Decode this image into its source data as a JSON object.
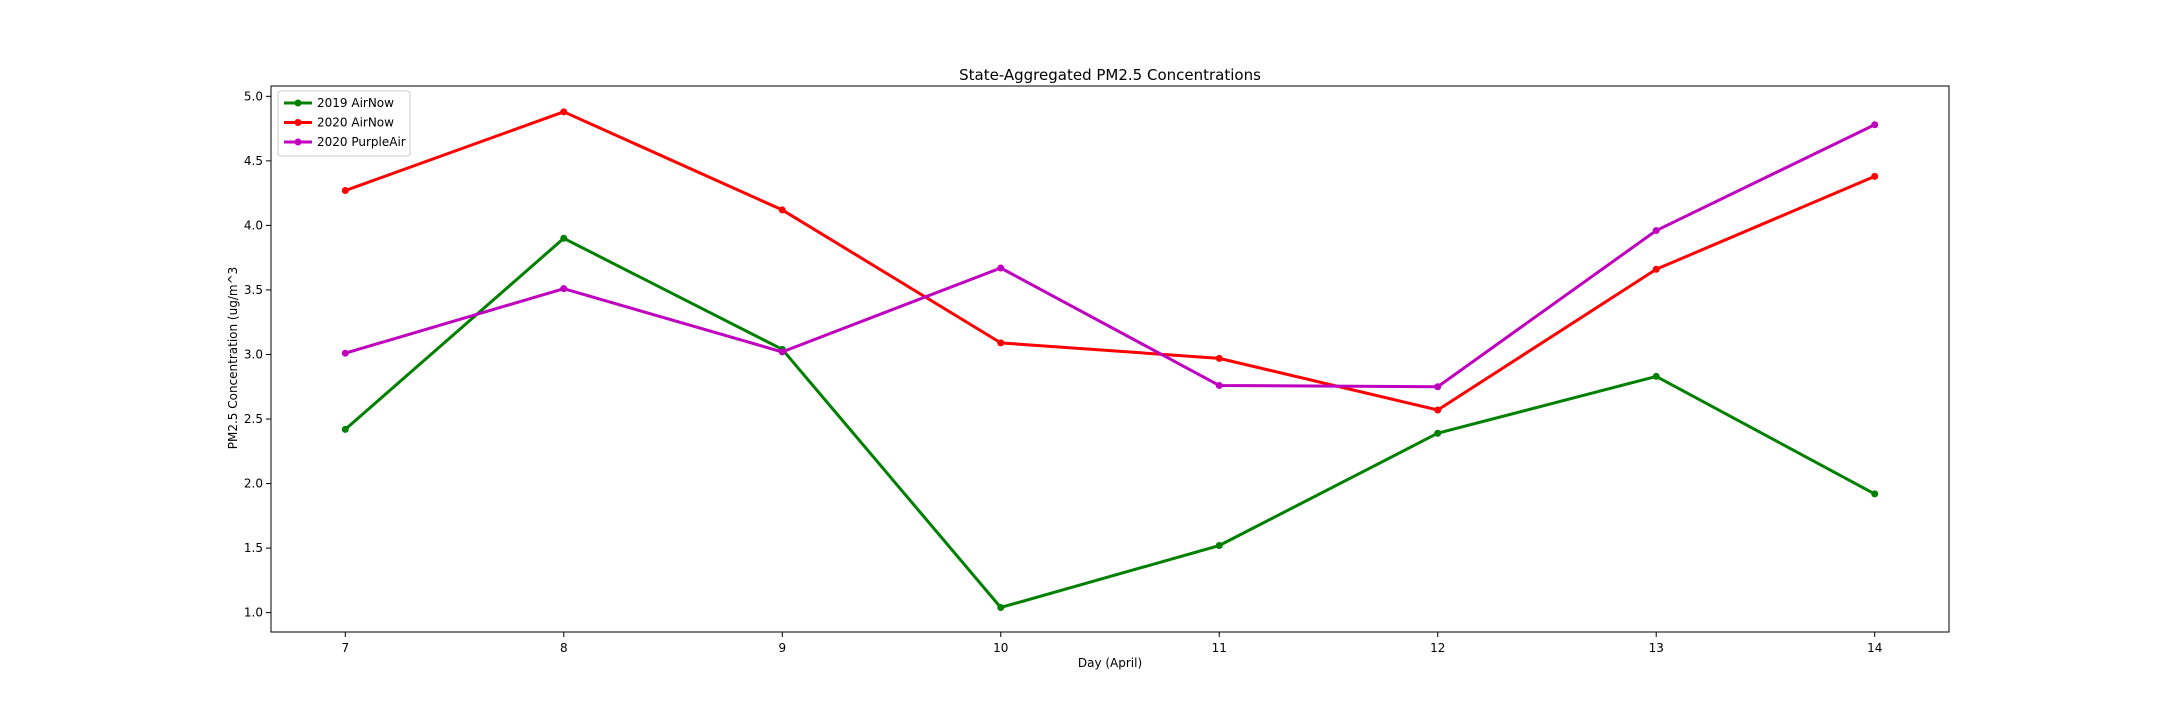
{
  "chart_data": {
    "type": "line",
    "title": "State-Aggregated PM2.5 Concentrations",
    "xlabel": "Day (April)",
    "ylabel": "PM2.5 Concentration (ug/m^3",
    "x": [
      7,
      8,
      9,
      10,
      11,
      12,
      13,
      14
    ],
    "xlim": [
      6.66,
      14.34
    ],
    "ylim": [
      0.85,
      5.08
    ],
    "xticks": [
      7,
      8,
      9,
      10,
      11,
      12,
      13,
      14
    ],
    "yticks": [
      1.0,
      1.5,
      2.0,
      2.5,
      3.0,
      3.5,
      4.0,
      4.5,
      5.0
    ],
    "ytick_labels": [
      "1.0",
      "1.5",
      "2.0",
      "2.5",
      "3.0",
      "3.5",
      "4.0",
      "4.5",
      "5.0"
    ],
    "grid": false,
    "legend_position": "top-left",
    "series": [
      {
        "name": "2019 AirNow",
        "color": "#008000",
        "values": [
          2.42,
          3.9,
          3.04,
          1.04,
          1.52,
          2.39,
          2.83,
          1.92
        ]
      },
      {
        "name": "2020 AirNow",
        "color": "#ff0000",
        "values": [
          4.27,
          4.88,
          4.12,
          3.09,
          2.97,
          2.57,
          3.66,
          4.38
        ]
      },
      {
        "name": "2020 PurpleAir",
        "color": "#bf00bf",
        "values": [
          3.01,
          3.51,
          3.02,
          3.67,
          2.76,
          2.75,
          3.96,
          4.78
        ]
      }
    ]
  }
}
